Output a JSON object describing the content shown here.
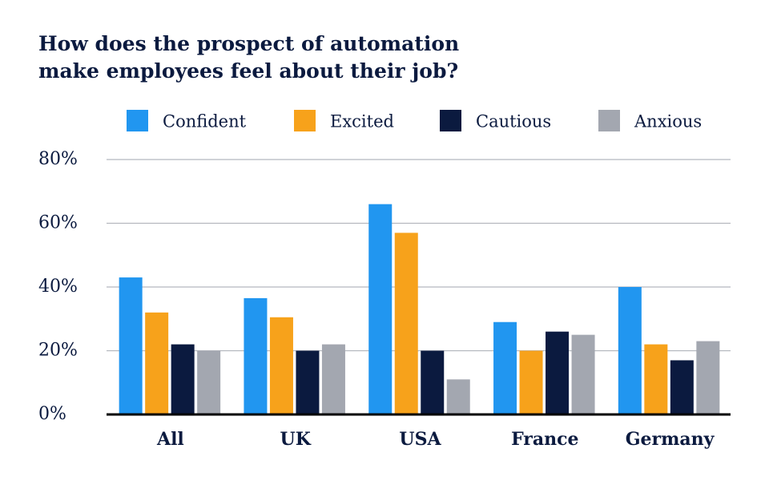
{
  "chart_data": {
    "type": "bar",
    "title": "How does the prospect of automation make employees feel about their job?",
    "categories": [
      "All",
      "UK",
      "USA",
      "France",
      "Germany"
    ],
    "series": [
      {
        "name": "Confident",
        "color": "#2196f0",
        "values": [
          43,
          36.5,
          66,
          29,
          40
        ]
      },
      {
        "name": "Excited",
        "color": "#f7a21b",
        "values": [
          32,
          30.5,
          57,
          20,
          22
        ]
      },
      {
        "name": "Cautious",
        "color": "#0b1a3f",
        "values": [
          22,
          20,
          20,
          26,
          17
        ]
      },
      {
        "name": "Anxious",
        "color": "#a3a7b0",
        "values": [
          20,
          22,
          11,
          25,
          23
        ]
      }
    ],
    "ylim": [
      0,
      80
    ],
    "yticks": [
      {
        "value": 0,
        "label": "0%"
      },
      {
        "value": 20,
        "label": "20%"
      },
      {
        "value": 40,
        "label": "40%"
      },
      {
        "value": 60,
        "label": "60%"
      },
      {
        "value": 80,
        "label": "80%"
      }
    ],
    "grid": true
  }
}
